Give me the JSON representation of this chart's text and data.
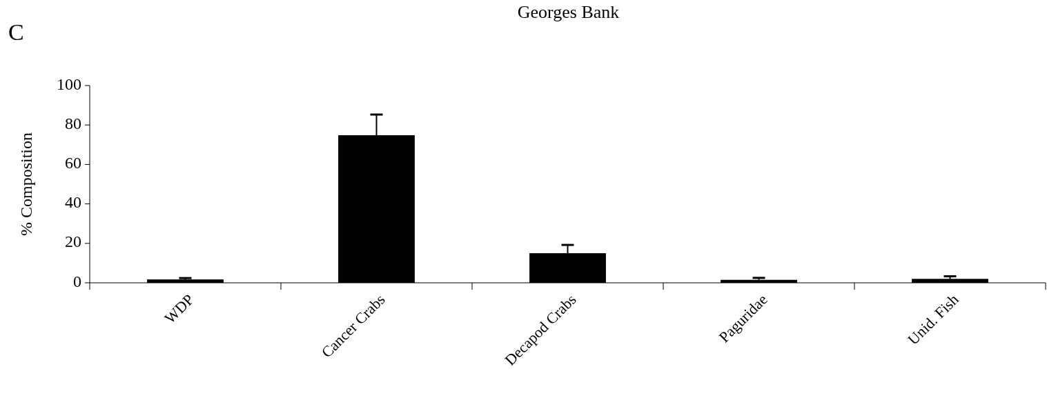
{
  "chart_data": {
    "type": "bar",
    "title": "Georges Bank",
    "ylabel": "% Composition",
    "annotations": [
      "C"
    ],
    "categories": [
      "WDP",
      "Cancer Crabs",
      "Decapod Crabs",
      "Paguridae",
      "Unid. Fish"
    ],
    "values": [
      1.7,
      74.8,
      15,
      1.5,
      2
    ],
    "errors": [
      0.7,
      10.5,
      4.2,
      1,
      1.3
    ],
    "color": "#000000",
    "ylim": [
      0,
      100
    ],
    "yticks": [
      0,
      20,
      40,
      60,
      80,
      100
    ],
    "grid": false
  }
}
